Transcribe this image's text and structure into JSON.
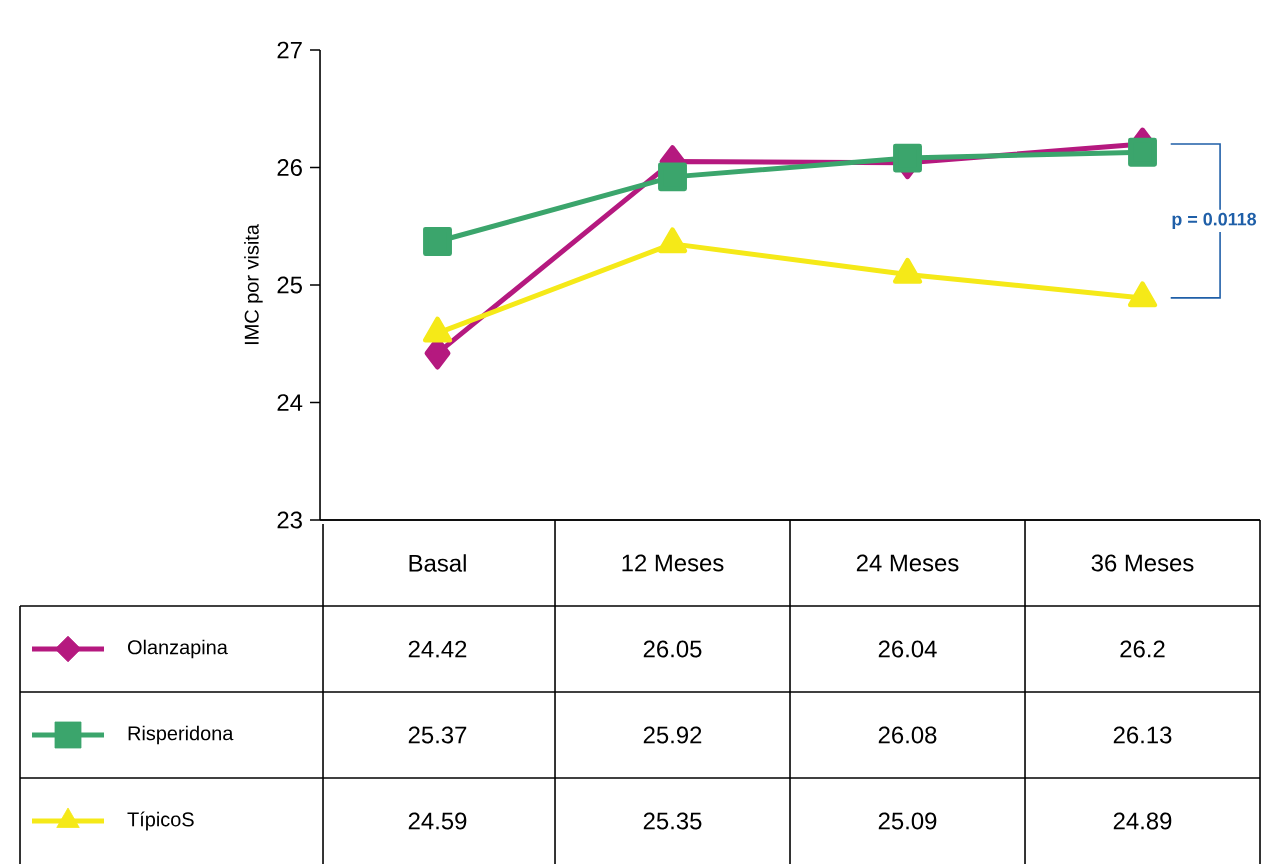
{
  "chart_data": {
    "type": "line",
    "ylabel": "IMC por visita",
    "categories": [
      "Basal",
      "12 Meses",
      "24 Meses",
      "36 Meses"
    ],
    "ylim": [
      23,
      27
    ],
    "yticks": [
      23,
      24,
      25,
      26,
      27
    ],
    "series": [
      {
        "name": "Olanzapina",
        "color": "#b5197f",
        "marker": "diamond",
        "values": [
          24.42,
          26.05,
          26.04,
          26.2
        ]
      },
      {
        "name": "Risperidona",
        "color": "#3ba56c",
        "marker": "square",
        "values": [
          25.37,
          25.92,
          26.08,
          26.13
        ]
      },
      {
        "name": "TípicoS",
        "color": "#f5e918",
        "marker": "triangle",
        "values": [
          24.59,
          25.35,
          25.09,
          24.89
        ]
      }
    ],
    "data_labels": true,
    "legend": "bottom",
    "line_style": "solid",
    "annotations": [
      "p = 0.0118"
    ]
  }
}
